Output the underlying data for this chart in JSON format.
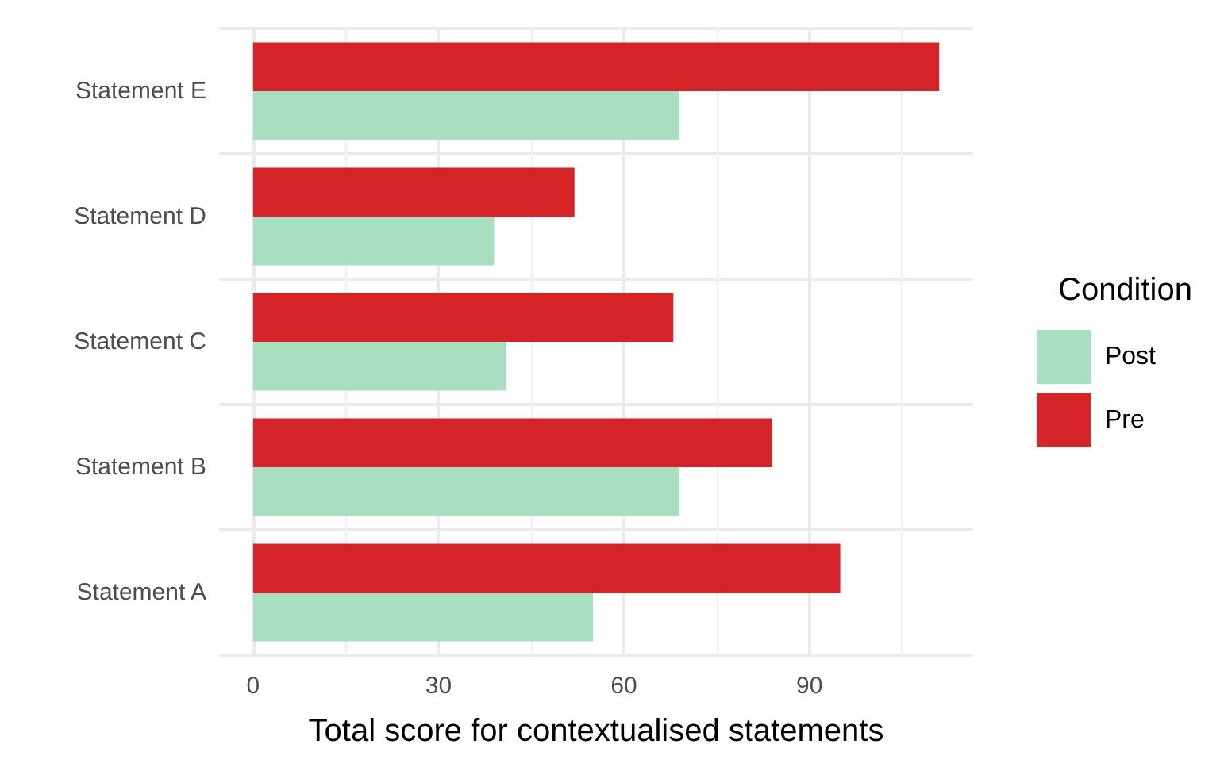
{
  "chart_data": {
    "type": "bar",
    "orientation": "horizontal",
    "xlabel": "Total score for contextualised statements",
    "legend_title": "Condition",
    "legend": "right",
    "categories": [
      "Statement E",
      "Statement D",
      "Statement C",
      "Statement B",
      "Statement A"
    ],
    "series": [
      {
        "name": "Post",
        "color": "#a8dfc0",
        "values": [
          69,
          39,
          41,
          69,
          55
        ]
      },
      {
        "name": "Pre",
        "color": "#d42427",
        "values": [
          111,
          52,
          68,
          84,
          95
        ]
      }
    ],
    "xlim": [
      -5.5,
      116.5
    ],
    "xticks": [
      0,
      30,
      60,
      90
    ],
    "grid": true
  }
}
